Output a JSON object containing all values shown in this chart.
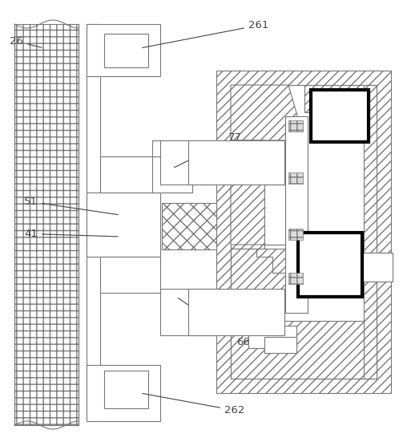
{
  "bg_color": "#ffffff",
  "lc": "#777777",
  "lc_dark": "#333333",
  "figsize": [
    4.98,
    5.56
  ],
  "dpi": 100,
  "label_fontsize": 9.5,
  "label_color": "#444444"
}
